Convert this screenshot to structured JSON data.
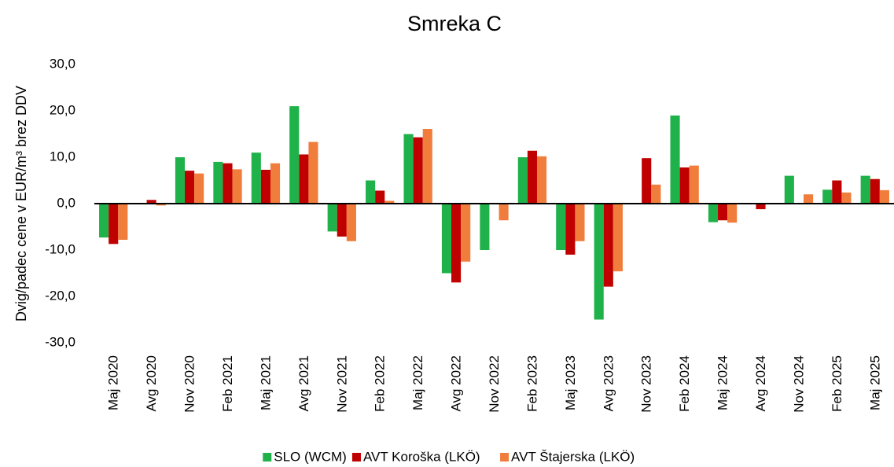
{
  "chart_data": {
    "type": "bar",
    "title": "Smreka C",
    "y_label": "Dvig/padec cene v EUR/m³ brez DDV",
    "categories": [
      "Maj 2020",
      "Avg 2020",
      "Nov 2020",
      "Feb 2021",
      "Maj 2021",
      "Avg 2021",
      "Nov 2021",
      "Feb 2022",
      "Maj 2022",
      "Avg 2022",
      "Nov 2022",
      "Feb 2023",
      "Maj 2023",
      "Avg 2023",
      "Nov 2023",
      "Feb 2024",
      "Maj 2024",
      "Avg 2024",
      "Nov 2024",
      "Feb 2025",
      "Maj 2025"
    ],
    "series": [
      {
        "name": "SLO (WCM)",
        "color": "#1fb24a",
        "values": [
          -7.3,
          0,
          10,
          9,
          11,
          21,
          -6,
          5,
          15,
          -15,
          -10,
          10,
          -10,
          -25,
          0,
          19,
          -4,
          0,
          6,
          3,
          6
        ]
      },
      {
        "name": "AVT Koroška (LKÖ)",
        "color": "#c00000",
        "values": [
          -8.7,
          0.8,
          7.1,
          8.7,
          7.3,
          10.6,
          -7.1,
          2.8,
          14.3,
          -17,
          0,
          11.4,
          -11,
          -17.9,
          9.8,
          7.8,
          -3.6,
          -1.2,
          0,
          5,
          5.3
        ]
      },
      {
        "name": "AVT Štajerska (LKÖ)",
        "color": "#f07d3b",
        "values": [
          -7.8,
          -0.4,
          6.5,
          7.4,
          8.7,
          13.3,
          -8.1,
          0.6,
          16.1,
          -12.5,
          -3.6,
          10.2,
          -8.1,
          -14.6,
          4.1,
          8.2,
          -4.1,
          0,
          2,
          2.4,
          2.9
        ]
      }
    ],
    "ylim": [
      -30,
      30
    ],
    "yticks": [
      {
        "value": -30,
        "label": "-30,0"
      },
      {
        "value": -20,
        "label": "-20,0"
      },
      {
        "value": -10,
        "label": "-10,0"
      },
      {
        "value": 0,
        "label": "0,0"
      },
      {
        "value": 10,
        "label": "10,0"
      },
      {
        "value": 20,
        "label": "20,0"
      },
      {
        "value": 30,
        "label": "30,0"
      }
    ],
    "legend": "bottom"
  }
}
